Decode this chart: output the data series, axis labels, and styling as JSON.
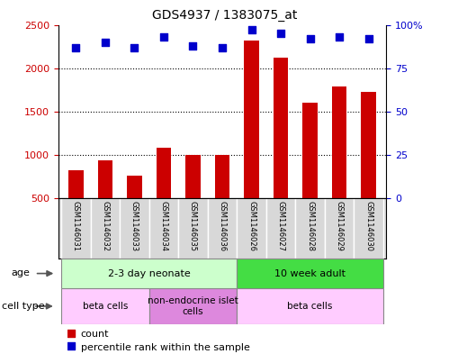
{
  "title": "GDS4937 / 1383075_at",
  "samples": [
    "GSM1146031",
    "GSM1146032",
    "GSM1146033",
    "GSM1146034",
    "GSM1146035",
    "GSM1146036",
    "GSM1146026",
    "GSM1146027",
    "GSM1146028",
    "GSM1146029",
    "GSM1146030"
  ],
  "counts": [
    820,
    940,
    760,
    1080,
    1000,
    1000,
    2320,
    2120,
    1600,
    1790,
    1730
  ],
  "percentiles": [
    87,
    90,
    87,
    93,
    88,
    87,
    97,
    95,
    92,
    93,
    92
  ],
  "bar_color": "#cc0000",
  "dot_color": "#0000cc",
  "ylim_left": [
    500,
    2500
  ],
  "ylim_right": [
    0,
    100
  ],
  "yticks_left": [
    500,
    1000,
    1500,
    2000,
    2500
  ],
  "yticks_right": [
    0,
    25,
    50,
    75,
    100
  ],
  "ytick_right_labels": [
    "0",
    "25",
    "50",
    "75",
    "100%"
  ],
  "gridlines": [
    1000,
    1500,
    2000
  ],
  "age_groups": [
    {
      "label": "2-3 day neonate",
      "start": 0,
      "end": 6,
      "color": "#ccffcc"
    },
    {
      "label": "10 week adult",
      "start": 6,
      "end": 11,
      "color": "#44dd44"
    }
  ],
  "cell_type_groups": [
    {
      "label": "beta cells",
      "start": 0,
      "end": 3,
      "color": "#ffccff"
    },
    {
      "label": "non-endocrine islet\ncells",
      "start": 3,
      "end": 6,
      "color": "#dd88dd"
    },
    {
      "label": "beta cells",
      "start": 6,
      "end": 11,
      "color": "#ffccff"
    }
  ],
  "legend_items": [
    {
      "color": "#cc0000",
      "label": "count"
    },
    {
      "color": "#0000cc",
      "label": "percentile rank within the sample"
    }
  ],
  "background_color": "#ffffff",
  "plot_bg_color": "#ffffff",
  "grid_color": "#000000",
  "tick_color_left": "#cc0000",
  "tick_color_right": "#0000cc",
  "bar_width": 0.5,
  "dot_size": 40,
  "dot_marker": "s",
  "sample_box_color": "#d8d8d8",
  "sample_box_edge": "#ffffff",
  "border_color": "#000000"
}
